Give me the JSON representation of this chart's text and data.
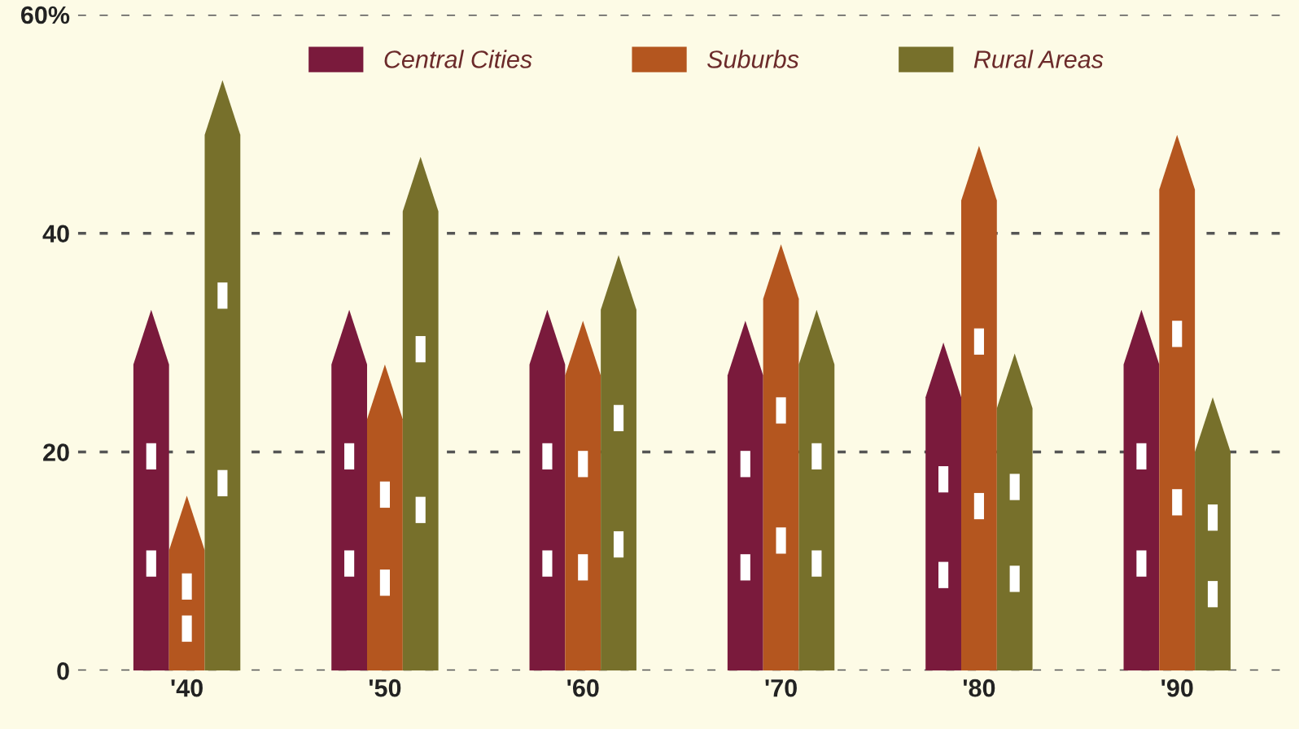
{
  "chart_data": {
    "type": "bar",
    "categories": [
      "'40",
      "'50",
      "'60",
      "'70",
      "'80",
      "'90"
    ],
    "series": [
      {
        "name": "Central Cities",
        "color": "#7a1a3c",
        "values": [
          33,
          33,
          33,
          32,
          30,
          33
        ]
      },
      {
        "name": "Suburbs",
        "color": "#b4561f",
        "values": [
          16,
          28,
          32,
          39,
          48,
          49
        ]
      },
      {
        "name": "Rural Areas",
        "color": "#77702b",
        "values": [
          54,
          47,
          38,
          33,
          29,
          25
        ]
      }
    ],
    "ylim": [
      0,
      60
    ],
    "yticks": [
      0,
      20,
      40,
      {
        "value": 60,
        "label": "60%"
      }
    ],
    "grid": "y",
    "legend": "top"
  }
}
